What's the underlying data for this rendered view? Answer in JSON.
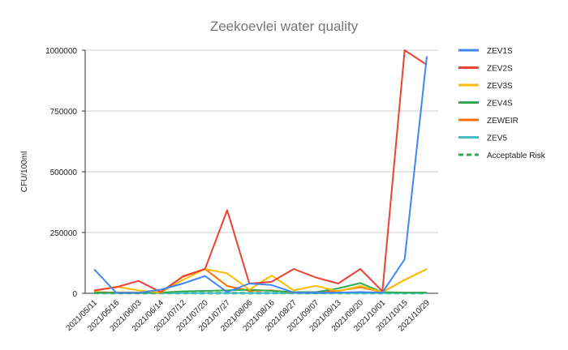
{
  "chart_data": {
    "type": "line",
    "title": "Zeekoevlei water quality",
    "xlabel": "",
    "ylabel": "CFU/100ml",
    "ylim": [
      0,
      1000000
    ],
    "yticks": [
      0,
      250000,
      500000,
      750000,
      1000000
    ],
    "grid": true,
    "legend": "right",
    "categories": [
      "2021/05/11",
      "2021/05/16",
      "2021/06/03",
      "2021/06/14",
      "2021/07/12",
      "2021/07/20",
      "2021/07/27",
      "2021/08/06",
      "2021/08/16",
      "2021/08/27",
      "2021/09/07",
      "2021/09/13",
      "2021/09/20",
      "2021/10/01",
      "2021/10/15",
      "2021/10/29"
    ],
    "series": [
      {
        "name": "ZEV1S",
        "color": "#4285f4",
        "dash": false,
        "values": [
          99000,
          2000,
          2000,
          15000,
          40000,
          71000,
          5000,
          40000,
          34000,
          3000,
          2000,
          3000,
          5000,
          3000,
          140000,
          975000
        ]
      },
      {
        "name": "ZEV2S",
        "color": "#ea4335",
        "dash": false,
        "values": [
          12000,
          25000,
          51000,
          5000,
          68000,
          100000,
          342000,
          40000,
          47000,
          100000,
          65000,
          40000,
          100000,
          8000,
          1000000,
          940000
        ]
      },
      {
        "name": "ZEV3S",
        "color": "#fbbc04",
        "dash": false,
        "values": [
          10000,
          27000,
          12000,
          3000,
          55000,
          100000,
          82000,
          15000,
          73000,
          12000,
          31000,
          8000,
          30000,
          5000,
          55000,
          100000
        ]
      },
      {
        "name": "ZEV4S",
        "color": "#34a853",
        "dash": false,
        "values": [
          3000,
          2000,
          2000,
          3000,
          8000,
          10000,
          12000,
          15000,
          10000,
          5000,
          5000,
          20000,
          42000,
          5000,
          3000,
          3000
        ]
      },
      {
        "name": "ZEWEIR",
        "color": "#ff6d01",
        "dash": false,
        "values": [
          5000,
          3000,
          3000,
          3000,
          70000,
          100000,
          30000,
          10000,
          12000,
          3000,
          3000,
          10000,
          25000,
          5000,
          55000,
          100000
        ]
      },
      {
        "name": "ZEV5",
        "color": "#46bdc6",
        "dash": false,
        "values": [
          1000,
          1000,
          1000,
          1000,
          1000,
          1000,
          1000,
          1000,
          1000,
          1000,
          1000,
          1000,
          1000,
          1000,
          1000,
          1000
        ]
      },
      {
        "name": "Acceptable Risk",
        "color": "#34a853",
        "dash": true,
        "values": [
          1000,
          1000,
          1000,
          1000,
          1000,
          1000,
          1000,
          1000,
          1000,
          1000,
          1000,
          1000,
          1000,
          1000,
          1000,
          1000
        ]
      }
    ]
  }
}
